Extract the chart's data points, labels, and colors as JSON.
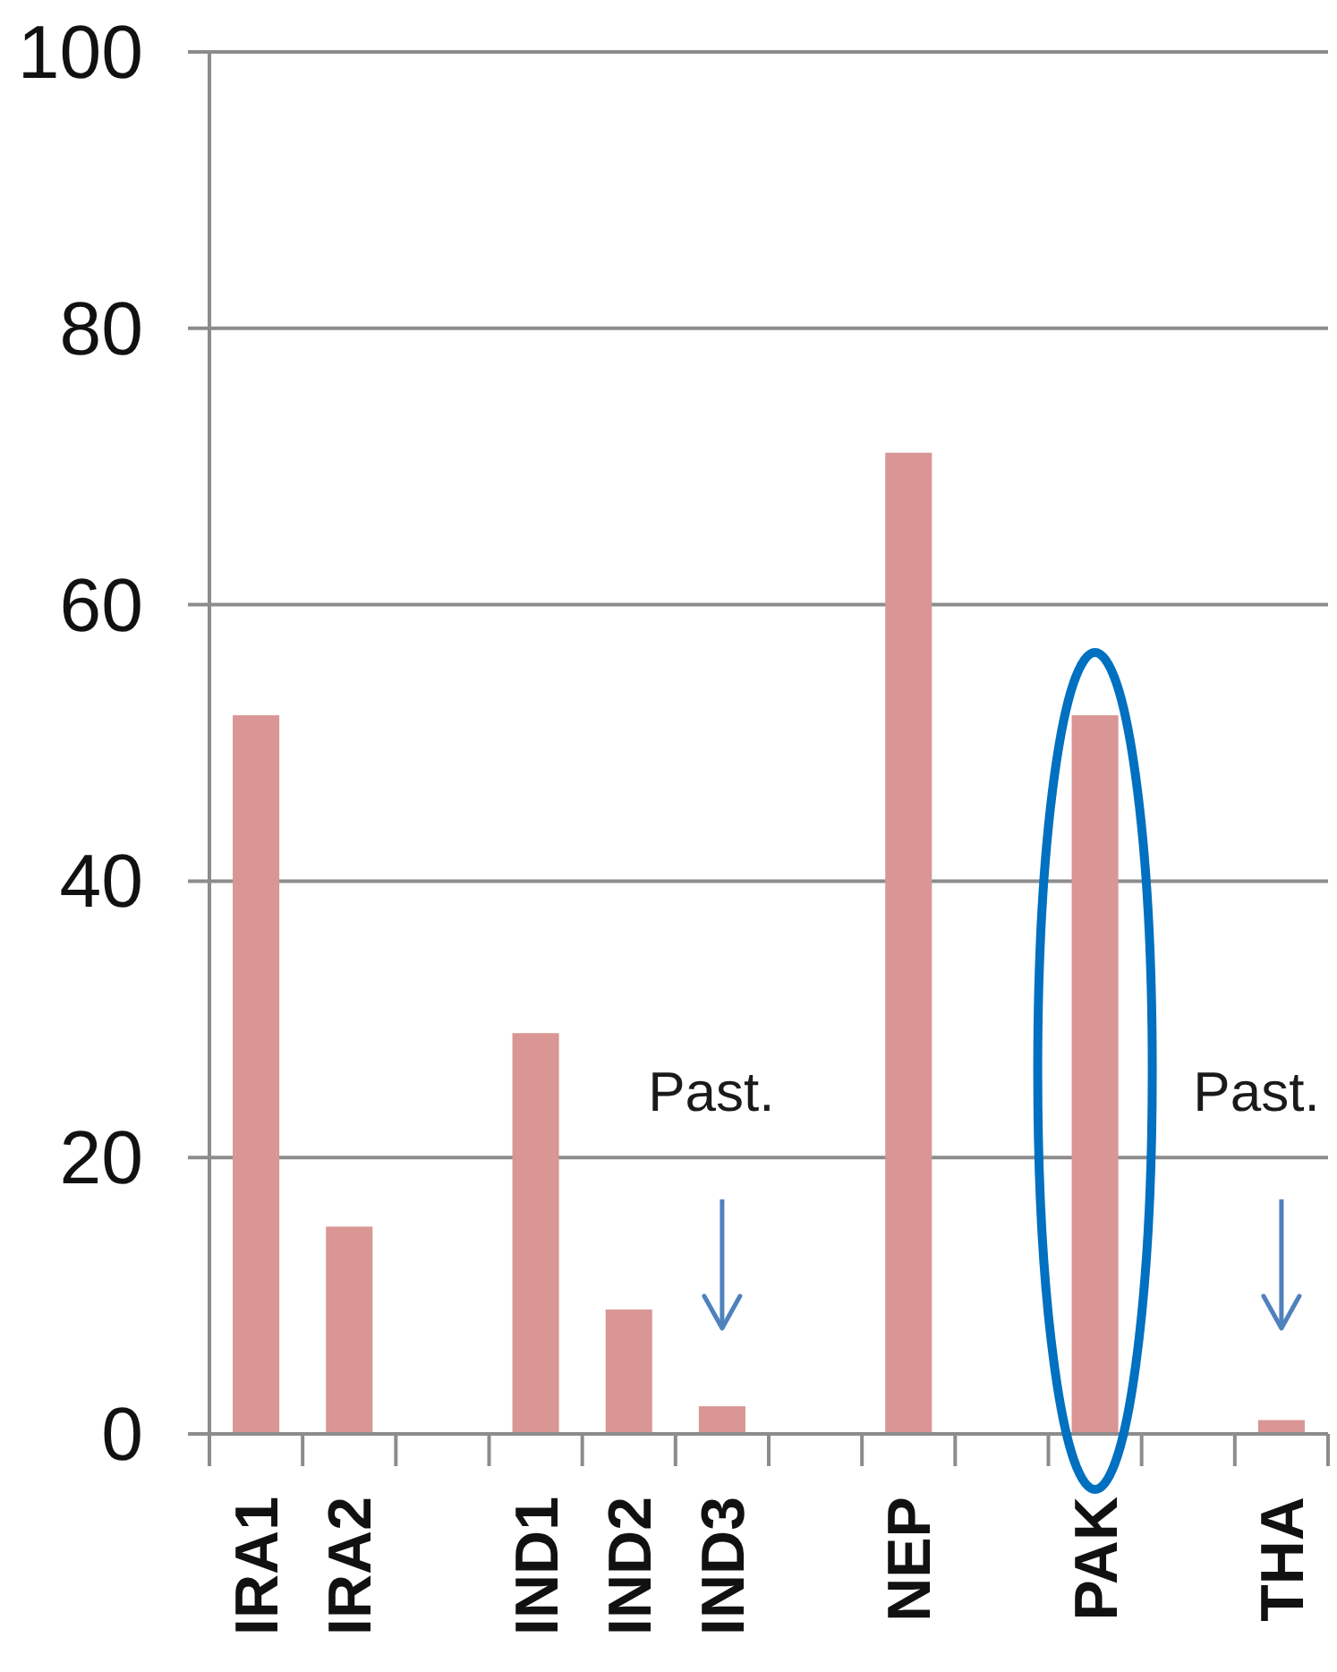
{
  "chart_data": {
    "type": "bar",
    "categories": [
      "IRA1",
      "IRA2",
      null,
      "IND1",
      "IND2",
      "IND3",
      null,
      "NEP",
      null,
      "PAK",
      null,
      "THA"
    ],
    "values": [
      52,
      15,
      null,
      29,
      9,
      2,
      null,
      71,
      null,
      52,
      null,
      1
    ],
    "color": "#d99694",
    "ylim": [
      0,
      100
    ],
    "yticks": [
      0,
      20,
      40,
      60,
      80,
      100
    ],
    "grid": "y",
    "annotations": [
      "Past.",
      "Past."
    ]
  }
}
